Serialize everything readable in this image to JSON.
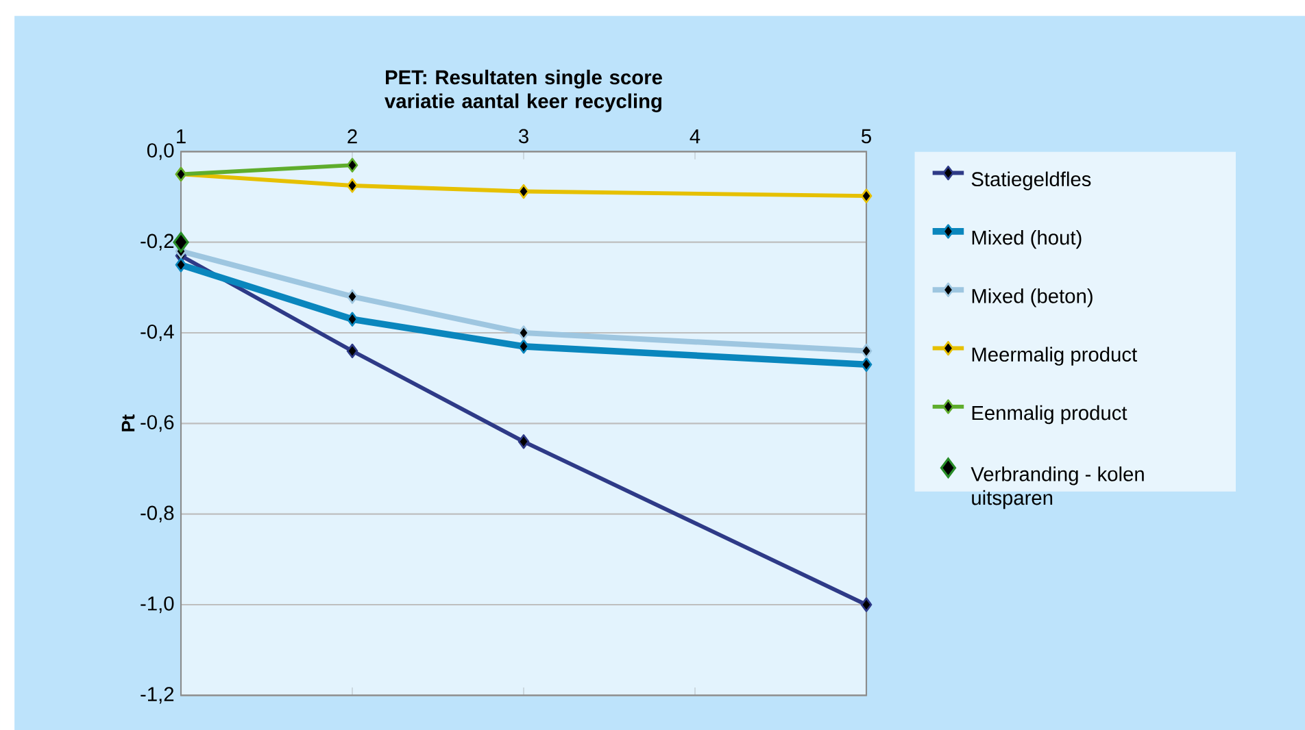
{
  "chart_data": {
    "type": "line",
    "title": "PET: Resultaten single score variatie aantal keer recycling",
    "ylabel": "Pt",
    "x": [
      1,
      2,
      3,
      5
    ],
    "xlim": [
      1,
      5
    ],
    "xticks": [
      1,
      2,
      3,
      4,
      5
    ],
    "ylim": [
      -1.2,
      0
    ],
    "yticks": [
      {
        "value": -1.2,
        "label": "-1,2"
      },
      {
        "value": -1.0,
        "label": "-1,0"
      },
      {
        "value": -0.8,
        "label": "-0,8"
      },
      {
        "value": -0.6,
        "label": "-0,6"
      },
      {
        "value": -0.4,
        "label": "-0,4"
      },
      {
        "value": -0.2,
        "label": "-0,2"
      },
      {
        "value": 0,
        "label": "0,0"
      }
    ],
    "grid": "y",
    "legend": "right",
    "marker": "diamond",
    "series": [
      {
        "name": "Statiegeldfles",
        "color": "#2e3a87",
        "values": [
          -0.23,
          -0.44,
          -0.64,
          -1.0
        ]
      },
      {
        "name": "Mixed (hout)",
        "color": "#0a86bd",
        "values": [
          -0.25,
          -0.37,
          -0.43,
          -0.47
        ]
      },
      {
        "name": "Mixed (beton)",
        "color": "#9ec6e0",
        "values": [
          -0.22,
          -0.32,
          -0.4,
          -0.44
        ]
      },
      {
        "name": "Meermalig product",
        "color": "#e6c000",
        "values": [
          -0.05,
          -0.075,
          -0.088,
          -0.098
        ]
      },
      {
        "name": "Eenmalig product",
        "color": "#5fad2c",
        "values": [
          -0.05,
          -0.03,
          null,
          null
        ]
      },
      {
        "name": "Verbranding - kolen uitsparen",
        "type": "scatter",
        "color": "#000000",
        "values": [
          -0.2,
          null,
          null,
          null
        ]
      }
    ]
  }
}
